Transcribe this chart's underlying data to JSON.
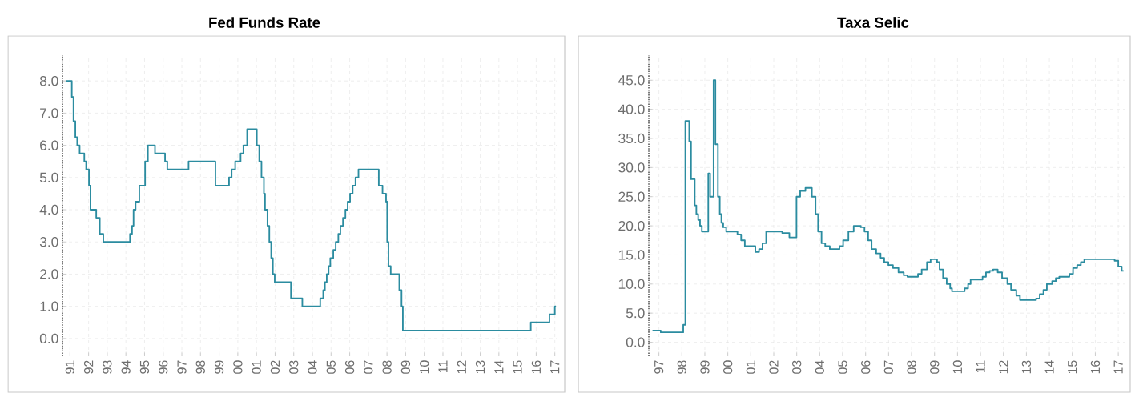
{
  "chart_data": [
    {
      "type": "step",
      "title": "Fed Funds Rate",
      "color": "#2b8ca0",
      "grid": true,
      "x": [
        1990.81,
        1991.1,
        1991.19,
        1991.29,
        1991.39,
        1991.52,
        1991.77,
        1991.87,
        1992.02,
        1992.1,
        1992.41,
        1992.6,
        1992.79,
        1994.22,
        1994.33,
        1994.41,
        1994.52,
        1994.72,
        1995.03,
        1995.18,
        1995.56,
        1996.1,
        1996.22,
        1997.36,
        1998.8,
        1999.53,
        1999.67,
        1999.86,
        2000.15,
        2000.3,
        2000.5,
        2001.02,
        2001.15,
        2001.27,
        2001.4,
        2001.46,
        2001.59,
        2001.69,
        2001.79,
        2001.88,
        2001.98,
        2002.85,
        2003.46,
        2004.42,
        2004.58,
        2004.67,
        2004.77,
        2004.87,
        2004.96,
        2005.12,
        2005.25,
        2005.39,
        2005.5,
        2005.64,
        2005.77,
        2005.89,
        2006.02,
        2006.16,
        2006.31,
        2006.47,
        2007.56,
        2007.76,
        2007.95,
        2008.01,
        2008.08,
        2008.2,
        2008.66,
        2008.78,
        2008.85,
        2015.71,
        2016.71,
        2017.0,
        2017.06
      ],
      "values": [
        8.0,
        7.5,
        6.75,
        6.25,
        6.0,
        5.75,
        5.5,
        5.25,
        4.75,
        4.0,
        3.75,
        3.25,
        3.0,
        3.25,
        3.5,
        4.0,
        4.25,
        4.75,
        5.5,
        6.0,
        5.75,
        5.5,
        5.25,
        5.5,
        4.75,
        5.0,
        5.25,
        5.5,
        5.75,
        6.0,
        6.5,
        6.0,
        5.5,
        5.0,
        4.5,
        4.0,
        3.5,
        3.0,
        2.5,
        2.0,
        1.75,
        1.25,
        1.0,
        1.25,
        1.5,
        1.75,
        2.0,
        2.25,
        2.5,
        2.75,
        3.0,
        3.25,
        3.5,
        3.75,
        4.0,
        4.25,
        4.5,
        4.75,
        5.0,
        5.25,
        4.75,
        4.5,
        4.25,
        3.0,
        2.25,
        2.0,
        1.5,
        1.0,
        0.25,
        0.5,
        0.75,
        1.0,
        1.0
      ],
      "xlim": [
        1990.6,
        2017.1
      ],
      "ylim": [
        -0.55,
        8.8
      ],
      "yticks": [
        {
          "value": 0,
          "label": "0.0"
        },
        {
          "value": 1,
          "label": "1.0"
        },
        {
          "value": 2,
          "label": "2.0"
        },
        {
          "value": 3,
          "label": "3.0"
        },
        {
          "value": 4,
          "label": "4.0"
        },
        {
          "value": 5,
          "label": "5.0"
        },
        {
          "value": 6,
          "label": "6.0"
        },
        {
          "value": 7,
          "label": "7.0"
        },
        {
          "value": 8,
          "label": "8.0"
        }
      ],
      "xticks": [
        {
          "value": 1991,
          "label": "91"
        },
        {
          "value": 1992,
          "label": "92"
        },
        {
          "value": 1993,
          "label": "93"
        },
        {
          "value": 1994,
          "label": "94"
        },
        {
          "value": 1995,
          "label": "95"
        },
        {
          "value": 1996,
          "label": "96"
        },
        {
          "value": 1997,
          "label": "97"
        },
        {
          "value": 1998,
          "label": "98"
        },
        {
          "value": 1999,
          "label": "99"
        },
        {
          "value": 2000,
          "label": "00"
        },
        {
          "value": 2001,
          "label": "01"
        },
        {
          "value": 2002,
          "label": "02"
        },
        {
          "value": 2003,
          "label": "03"
        },
        {
          "value": 2004,
          "label": "04"
        },
        {
          "value": 2005,
          "label": "05"
        },
        {
          "value": 2006,
          "label": "06"
        },
        {
          "value": 2007,
          "label": "07"
        },
        {
          "value": 2008,
          "label": "08"
        },
        {
          "value": 2009,
          "label": "09"
        },
        {
          "value": 2010,
          "label": "10"
        },
        {
          "value": 2011,
          "label": "11"
        },
        {
          "value": 2012,
          "label": "12"
        },
        {
          "value": 2013,
          "label": "13"
        },
        {
          "value": 2014,
          "label": "14"
        },
        {
          "value": 2015,
          "label": "15"
        },
        {
          "value": 2016,
          "label": "16"
        },
        {
          "value": 2017,
          "label": "17"
        }
      ]
    },
    {
      "type": "step",
      "title": "Taxa Selic",
      "color": "#2b8ca0",
      "grid": true,
      "x": [
        1996.72,
        1997.08,
        1998.06,
        1998.15,
        1998.32,
        1998.4,
        1998.56,
        1998.63,
        1998.71,
        1998.79,
        1998.87,
        1999.15,
        1999.23,
        1999.38,
        1999.46,
        1999.57,
        1999.65,
        1999.72,
        1999.8,
        1999.93,
        2000.42,
        2000.58,
        2000.74,
        2001.2,
        2001.36,
        2001.51,
        2001.67,
        2002.37,
        2002.68,
        2002.99,
        2003.15,
        2003.38,
        2003.66,
        2003.82,
        2003.93,
        2004.08,
        2004.24,
        2004.44,
        2004.86,
        2005.02,
        2005.25,
        2005.48,
        2005.79,
        2005.95,
        2006.11,
        2006.26,
        2006.46,
        2006.65,
        2006.81,
        2006.99,
        2007.19,
        2007.43,
        2007.66,
        2007.82,
        2008.28,
        2008.44,
        2008.67,
        2008.83,
        2009.11,
        2009.22,
        2009.37,
        2009.53,
        2009.68,
        2009.76,
        2010.31,
        2010.46,
        2010.57,
        2011.09,
        2011.24,
        2011.4,
        2011.55,
        2011.75,
        2011.94,
        2012.17,
        2012.33,
        2012.56,
        2012.72,
        2013.42,
        2013.58,
        2013.74,
        2013.89,
        2014.12,
        2014.28,
        2014.43,
        2014.87,
        2015.03,
        2015.21,
        2015.37,
        2015.52,
        2016.84,
        2017.0,
        2017.15,
        2017.23
      ],
      "values": [
        2.0,
        1.7,
        3.0,
        38.0,
        34.5,
        28.0,
        23.5,
        22.0,
        21.0,
        20.0,
        19.0,
        29.0,
        25.0,
        45.0,
        34.0,
        25.0,
        22.0,
        20.5,
        19.75,
        19.0,
        18.5,
        17.5,
        16.5,
        15.5,
        16.0,
        17.0,
        19.0,
        18.75,
        18.0,
        25.0,
        26.0,
        26.5,
        25.0,
        22.0,
        19.0,
        17.0,
        16.5,
        16.0,
        16.5,
        17.5,
        19.0,
        20.0,
        19.75,
        19.0,
        17.5,
        16.0,
        15.25,
        14.5,
        13.75,
        13.25,
        12.75,
        12.0,
        11.5,
        11.25,
        11.75,
        12.5,
        13.75,
        14.25,
        13.75,
        12.5,
        11.0,
        10.0,
        9.25,
        8.75,
        9.25,
        10.0,
        10.75,
        11.25,
        12.0,
        12.25,
        12.5,
        12.0,
        11.0,
        10.0,
        9.0,
        8.0,
        7.25,
        7.5,
        8.25,
        9.0,
        10.0,
        10.5,
        11.0,
        11.25,
        11.75,
        12.75,
        13.25,
        13.75,
        14.25,
        14.0,
        13.0,
        12.25,
        12.25
      ],
      "xlim": [
        1996.56,
        2017.31
      ],
      "ylim": [
        -2.4,
        49.3
      ],
      "yticks": [
        {
          "value": 0,
          "label": "0.0"
        },
        {
          "value": 5,
          "label": "5.0"
        },
        {
          "value": 10,
          "label": "10.0"
        },
        {
          "value": 15,
          "label": "15.0"
        },
        {
          "value": 20,
          "label": "20.0"
        },
        {
          "value": 25,
          "label": "25.0"
        },
        {
          "value": 30,
          "label": "30.0"
        },
        {
          "value": 35,
          "label": "35.0"
        },
        {
          "value": 40,
          "label": "40.0"
        },
        {
          "value": 45,
          "label": "45.0"
        }
      ],
      "xticks": [
        {
          "value": 1997,
          "label": "97"
        },
        {
          "value": 1998,
          "label": "98"
        },
        {
          "value": 1999,
          "label": "99"
        },
        {
          "value": 2000,
          "label": "00"
        },
        {
          "value": 2001,
          "label": "01"
        },
        {
          "value": 2002,
          "label": "02"
        },
        {
          "value": 2003,
          "label": "03"
        },
        {
          "value": 2004,
          "label": "04"
        },
        {
          "value": 2005,
          "label": "05"
        },
        {
          "value": 2006,
          "label": "06"
        },
        {
          "value": 2007,
          "label": "07"
        },
        {
          "value": 2008,
          "label": "08"
        },
        {
          "value": 2009,
          "label": "09"
        },
        {
          "value": 2010,
          "label": "10"
        },
        {
          "value": 2011,
          "label": "11"
        },
        {
          "value": 2012,
          "label": "12"
        },
        {
          "value": 2013,
          "label": "13"
        },
        {
          "value": 2014,
          "label": "14"
        },
        {
          "value": 2015,
          "label": "15"
        },
        {
          "value": 2016,
          "label": "16"
        },
        {
          "value": 2017,
          "label": "17"
        }
      ]
    }
  ]
}
